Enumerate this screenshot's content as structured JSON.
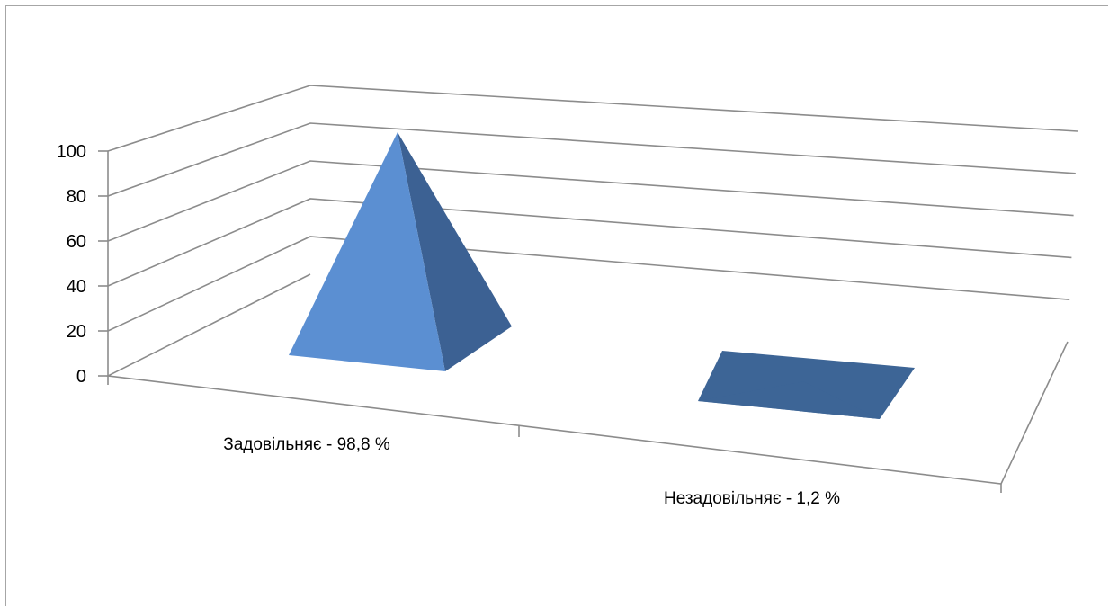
{
  "chart_data": {
    "type": "bar",
    "shape": "pyramid-3d",
    "categories": [
      "Задовільняє - 98,8 %",
      "Незадовільняє - 1,2 %"
    ],
    "values": [
      98.8,
      1.2
    ],
    "yticks": [
      "0",
      "20",
      "40",
      "60",
      "80",
      "100"
    ],
    "ylim": [
      0,
      100
    ],
    "grid": true,
    "legend": "none",
    "colors": {
      "front_face": "#5b8fd2",
      "side_face": "#3c6193",
      "base_face": "#3d6596",
      "grid": "#8c8c8c"
    }
  }
}
